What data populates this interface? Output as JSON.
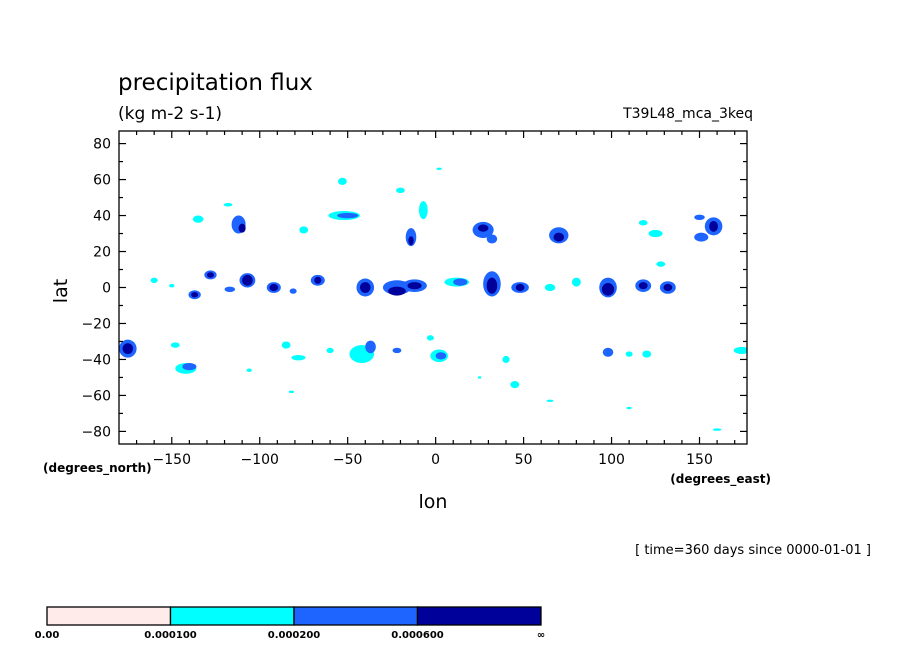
{
  "chart_data": {
    "type": "heatmap",
    "title": "precipitation flux",
    "units": "(kg m-2 s-1)",
    "run_name": "T39L48_mca_3keq",
    "xlabel": "lon",
    "ylabel": "lat",
    "x_units": "(degrees_east)",
    "y_units": "(degrees_north)",
    "time_label": "[ time=360 days since 0000-01-01 ]",
    "xlim": [
      -180,
      177
    ],
    "ylim": [
      -87,
      87
    ],
    "x_ticks": [
      -150,
      -100,
      -50,
      0,
      50,
      100,
      150
    ],
    "x_tick_labels": [
      "−150",
      "−100",
      "−50",
      "0",
      "50",
      "100",
      "150"
    ],
    "y_ticks": [
      80,
      60,
      40,
      20,
      0,
      -20,
      -40,
      -60,
      -80
    ],
    "y_tick_labels": [
      "80",
      "60",
      "40",
      "20",
      "0",
      "−20",
      "−40",
      "−60",
      "−80"
    ],
    "grid": false,
    "colorbar": {
      "boundaries": [
        "0.00",
        "0.000100",
        "0.000200",
        "0.000600",
        "∞"
      ],
      "colors": [
        "#ffecea",
        "#00ffff",
        "#1e64ff",
        "#00009a"
      ]
    },
    "features": [
      {
        "lon": -160,
        "lat": 4,
        "w": 4,
        "h": 3,
        "level": 1
      },
      {
        "lon": -150,
        "lat": 1,
        "w": 3,
        "h": 2,
        "level": 1
      },
      {
        "lon": -137,
        "lat": -4,
        "w": 7,
        "h": 5,
        "level": 2
      },
      {
        "lon": -137,
        "lat": -4,
        "w": 4,
        "h": 3,
        "level": 3
      },
      {
        "lon": -128,
        "lat": 7,
        "w": 7,
        "h": 5,
        "level": 2
      },
      {
        "lon": -128,
        "lat": 7,
        "w": 4,
        "h": 3,
        "level": 3
      },
      {
        "lon": -117,
        "lat": -1,
        "w": 6,
        "h": 3,
        "level": 2
      },
      {
        "lon": -107,
        "lat": 4,
        "w": 9,
        "h": 8,
        "level": 2
      },
      {
        "lon": -107,
        "lat": 4,
        "w": 6,
        "h": 6,
        "level": 3
      },
      {
        "lon": -92,
        "lat": 0,
        "w": 8,
        "h": 6,
        "level": 2
      },
      {
        "lon": -92,
        "lat": 0,
        "w": 5,
        "h": 4,
        "level": 3
      },
      {
        "lon": -81,
        "lat": -2,
        "w": 4,
        "h": 3,
        "level": 2
      },
      {
        "lon": -67,
        "lat": 4,
        "w": 8,
        "h": 6,
        "level": 2
      },
      {
        "lon": -67,
        "lat": 4,
        "w": 4,
        "h": 4,
        "level": 3
      },
      {
        "lon": -40,
        "lat": 0,
        "w": 10,
        "h": 10,
        "level": 2
      },
      {
        "lon": -40,
        "lat": 0,
        "w": 6,
        "h": 6,
        "level": 3
      },
      {
        "lon": -22,
        "lat": 0,
        "w": 16,
        "h": 8,
        "level": 2
      },
      {
        "lon": -22,
        "lat": -2,
        "w": 10,
        "h": 5,
        "level": 3
      },
      {
        "lon": -12,
        "lat": 1,
        "w": 14,
        "h": 7,
        "level": 2
      },
      {
        "lon": -12,
        "lat": 1,
        "w": 8,
        "h": 4,
        "level": 3
      },
      {
        "lon": 12,
        "lat": 3,
        "w": 14,
        "h": 5,
        "level": 1
      },
      {
        "lon": 14,
        "lat": 3,
        "w": 8,
        "h": 4,
        "level": 2
      },
      {
        "lon": 32,
        "lat": 2,
        "w": 10,
        "h": 14,
        "level": 2
      },
      {
        "lon": 32,
        "lat": 1,
        "w": 6,
        "h": 9,
        "level": 3
      },
      {
        "lon": 48,
        "lat": 0,
        "w": 10,
        "h": 6,
        "level": 2
      },
      {
        "lon": 48,
        "lat": 0,
        "w": 5,
        "h": 4,
        "level": 3
      },
      {
        "lon": 65,
        "lat": 0,
        "w": 6,
        "h": 4,
        "level": 1
      },
      {
        "lon": 80,
        "lat": 3,
        "w": 5,
        "h": 5,
        "level": 1
      },
      {
        "lon": 98,
        "lat": 0,
        "w": 10,
        "h": 11,
        "level": 2
      },
      {
        "lon": 98,
        "lat": -1,
        "w": 7,
        "h": 7,
        "level": 3
      },
      {
        "lon": 118,
        "lat": 1,
        "w": 9,
        "h": 7,
        "level": 2
      },
      {
        "lon": 118,
        "lat": 1,
        "w": 5,
        "h": 4,
        "level": 3
      },
      {
        "lon": 132,
        "lat": 0,
        "w": 9,
        "h": 7,
        "level": 2
      },
      {
        "lon": 132,
        "lat": 0,
        "w": 5,
        "h": 4,
        "level": 3
      },
      {
        "lon": -135,
        "lat": 38,
        "w": 6,
        "h": 4,
        "level": 1
      },
      {
        "lon": -112,
        "lat": 35,
        "w": 8,
        "h": 10,
        "level": 2
      },
      {
        "lon": -110,
        "lat": 33,
        "w": 4,
        "h": 5,
        "level": 3
      },
      {
        "lon": -118,
        "lat": 46,
        "w": 5,
        "h": 2,
        "level": 1
      },
      {
        "lon": -75,
        "lat": 32,
        "w": 5,
        "h": 4,
        "level": 1
      },
      {
        "lon": -52,
        "lat": 40,
        "w": 18,
        "h": 5,
        "level": 1
      },
      {
        "lon": -50,
        "lat": 40,
        "w": 12,
        "h": 3,
        "level": 2
      },
      {
        "lon": -53,
        "lat": 59,
        "w": 5,
        "h": 4,
        "level": 1
      },
      {
        "lon": -20,
        "lat": 54,
        "w": 5,
        "h": 3,
        "level": 1
      },
      {
        "lon": -7,
        "lat": 43,
        "w": 5,
        "h": 10,
        "level": 1
      },
      {
        "lon": -14,
        "lat": 28,
        "w": 6,
        "h": 10,
        "level": 2
      },
      {
        "lon": -14,
        "lat": 26,
        "w": 3,
        "h": 5,
        "level": 3
      },
      {
        "lon": 27,
        "lat": 32,
        "w": 12,
        "h": 9,
        "level": 2
      },
      {
        "lon": 27,
        "lat": 33,
        "w": 6,
        "h": 4,
        "level": 3
      },
      {
        "lon": 32,
        "lat": 27,
        "w": 6,
        "h": 5,
        "level": 2
      },
      {
        "lon": 70,
        "lat": 29,
        "w": 11,
        "h": 9,
        "level": 2
      },
      {
        "lon": 70,
        "lat": 28,
        "w": 6,
        "h": 5,
        "level": 3
      },
      {
        "lon": 118,
        "lat": 36,
        "w": 5,
        "h": 3,
        "level": 1
      },
      {
        "lon": 125,
        "lat": 30,
        "w": 8,
        "h": 4,
        "level": 1
      },
      {
        "lon": 150,
        "lat": 39,
        "w": 6,
        "h": 3,
        "level": 2
      },
      {
        "lon": 158,
        "lat": 34,
        "w": 10,
        "h": 10,
        "level": 2
      },
      {
        "lon": 158,
        "lat": 34,
        "w": 5,
        "h": 6,
        "level": 3
      },
      {
        "lon": 151,
        "lat": 28,
        "w": 8,
        "h": 5,
        "level": 2
      },
      {
        "lon": 128,
        "lat": 13,
        "w": 5,
        "h": 3,
        "level": 1
      },
      {
        "lon": 2,
        "lat": 66,
        "w": 3,
        "h": 1,
        "level": 1
      },
      {
        "lon": -175,
        "lat": -34,
        "w": 10,
        "h": 10,
        "level": 2
      },
      {
        "lon": -175,
        "lat": -34,
        "w": 6,
        "h": 6,
        "level": 3
      },
      {
        "lon": -142,
        "lat": -45,
        "w": 12,
        "h": 6,
        "level": 1
      },
      {
        "lon": -140,
        "lat": -44,
        "w": 8,
        "h": 4,
        "level": 2
      },
      {
        "lon": -148,
        "lat": -32,
        "w": 5,
        "h": 3,
        "level": 1
      },
      {
        "lon": -85,
        "lat": -32,
        "w": 5,
        "h": 4,
        "level": 1
      },
      {
        "lon": -78,
        "lat": -39,
        "w": 8,
        "h": 3,
        "level": 1
      },
      {
        "lon": -60,
        "lat": -35,
        "w": 4,
        "h": 3,
        "level": 1
      },
      {
        "lon": -42,
        "lat": -37,
        "w": 14,
        "h": 10,
        "level": 1
      },
      {
        "lon": -37,
        "lat": -33,
        "w": 6,
        "h": 7,
        "level": 2
      },
      {
        "lon": -22,
        "lat": -35,
        "w": 5,
        "h": 3,
        "level": 2
      },
      {
        "lon": -3,
        "lat": -28,
        "w": 4,
        "h": 3,
        "level": 1
      },
      {
        "lon": 2,
        "lat": -38,
        "w": 10,
        "h": 7,
        "level": 1
      },
      {
        "lon": 3,
        "lat": -38,
        "w": 6,
        "h": 4,
        "level": 2
      },
      {
        "lon": 40,
        "lat": -40,
        "w": 4,
        "h": 4,
        "level": 1
      },
      {
        "lon": 45,
        "lat": -54,
        "w": 5,
        "h": 4,
        "level": 1
      },
      {
        "lon": 65,
        "lat": -63,
        "w": 4,
        "h": 1,
        "level": 1
      },
      {
        "lon": 98,
        "lat": -36,
        "w": 6,
        "h": 5,
        "level": 2
      },
      {
        "lon": 110,
        "lat": -37,
        "w": 4,
        "h": 3,
        "level": 1
      },
      {
        "lon": 120,
        "lat": -37,
        "w": 5,
        "h": 4,
        "level": 1
      },
      {
        "lon": 174,
        "lat": -35,
        "w": 9,
        "h": 4,
        "level": 1
      },
      {
        "lon": 160,
        "lat": -79,
        "w": 5,
        "h": 1,
        "level": 1
      },
      {
        "lon": 110,
        "lat": -67,
        "w": 3,
        "h": 1,
        "level": 1
      },
      {
        "lon": 25,
        "lat": -50,
        "w": 2,
        "h": 1,
        "level": 1
      },
      {
        "lon": -82,
        "lat": -58,
        "w": 3,
        "h": 1,
        "level": 1
      },
      {
        "lon": -106,
        "lat": -46,
        "w": 3,
        "h": 2,
        "level": 1
      }
    ]
  }
}
